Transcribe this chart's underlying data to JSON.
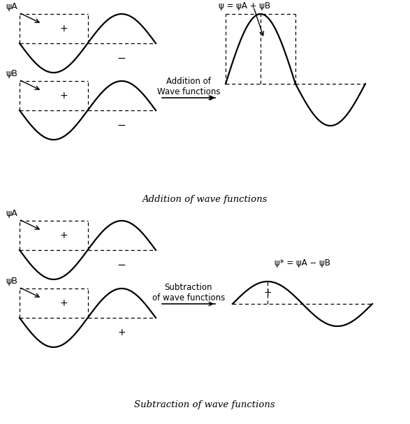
{
  "bg_color": "#ffffff",
  "title_addition": "Addition of wave functions",
  "title_subtraction": "Subtraction of wave functions",
  "arrow_label_addition": "Addition of\nWave functions",
  "arrow_label_subtraction": "Subtraction\nof wave functions",
  "label_psiA_top": "ψA",
  "label_psiB_top": "ψB",
  "label_psiA_bot": "ψA",
  "label_psiB_bot": "ψB",
  "label_result_top": "ψ = ψA + ψB",
  "label_result_bot": "ψ* = ψA − ψB",
  "line_color": "#000000",
  "dashed_color": "#000000",
  "text_color": "#000000"
}
